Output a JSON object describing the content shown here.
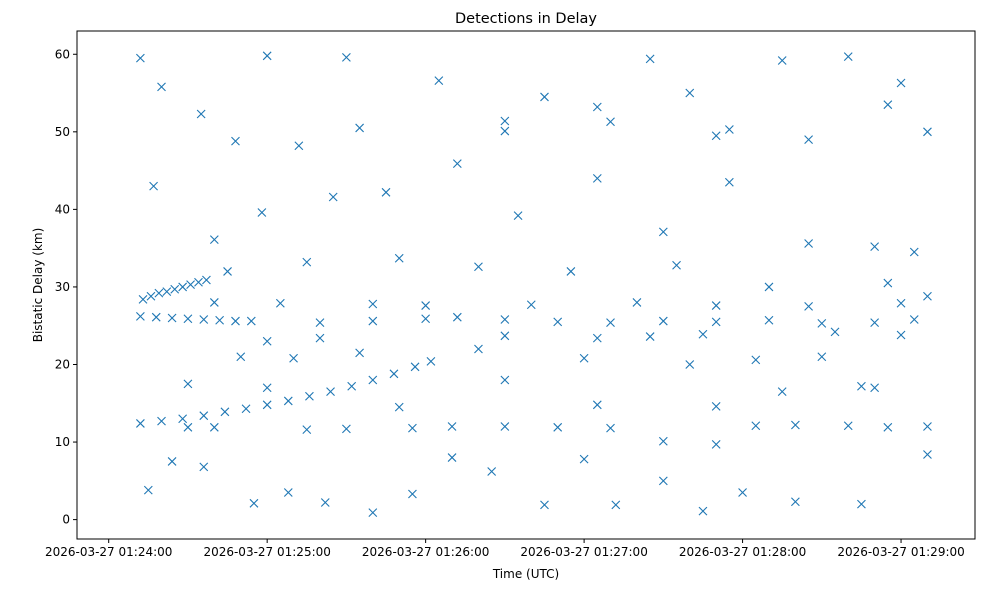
{
  "chart_data": {
    "type": "scatter",
    "title": "Detections in Delay",
    "xlabel": "Time (UTC)",
    "ylabel": "Bistatic Delay (km)",
    "marker": "x",
    "color": "#1f77b4",
    "grid": false,
    "legend": false,
    "x_unit": "time (UTC), 2026-03-27",
    "x_ticks": [
      "2026-03-27 01:24:00",
      "2026-03-27 01:25:00",
      "2026-03-27 01:26:00",
      "2026-03-27 01:27:00",
      "2026-03-27 01:28:00",
      "2026-03-27 01:29:00"
    ],
    "y_ticks": [
      0,
      10,
      20,
      30,
      40,
      50,
      60
    ],
    "xlim": [
      "2026-03-27 01:23:48",
      "2026-03-27 01:29:28"
    ],
    "ylim": [
      -2.5,
      63
    ],
    "series": [
      {
        "description_visible": "",
        "points": [
          [
            "01:24:13",
            28.4
          ],
          [
            "01:24:16",
            28.8
          ],
          [
            "01:24:19",
            29.2
          ],
          [
            "01:24:22",
            29.4
          ],
          [
            "01:24:25",
            29.7
          ],
          [
            "01:24:28",
            30.0
          ],
          [
            "01:24:31",
            30.3
          ],
          [
            "01:24:34",
            30.6
          ],
          [
            "01:24:37",
            30.9
          ],
          [
            "01:24:12",
            26.2
          ],
          [
            "01:24:18",
            26.1
          ],
          [
            "01:24:24",
            26.0
          ],
          [
            "01:24:30",
            25.9
          ],
          [
            "01:24:36",
            25.8
          ],
          [
            "01:24:42",
            25.7
          ],
          [
            "01:24:48",
            25.6
          ],
          [
            "01:24:54",
            25.6
          ],
          [
            "01:25:20",
            25.4
          ],
          [
            "01:25:40",
            25.6
          ],
          [
            "01:26:00",
            25.9
          ],
          [
            "01:26:12",
            26.1
          ],
          [
            "01:26:30",
            25.8
          ],
          [
            "01:26:50",
            25.5
          ],
          [
            "01:27:10",
            25.4
          ],
          [
            "01:27:30",
            25.6
          ],
          [
            "01:27:50",
            25.5
          ],
          [
            "01:28:10",
            25.7
          ],
          [
            "01:28:30",
            25.3
          ],
          [
            "01:28:50",
            25.4
          ],
          [
            "01:29:05",
            25.8
          ],
          [
            "01:24:12",
            12.4
          ],
          [
            "01:24:20",
            12.7
          ],
          [
            "01:24:28",
            13.0
          ],
          [
            "01:24:36",
            13.4
          ],
          [
            "01:24:44",
            13.9
          ],
          [
            "01:24:52",
            14.3
          ],
          [
            "01:25:00",
            14.8
          ],
          [
            "01:25:08",
            15.3
          ],
          [
            "01:25:16",
            15.9
          ],
          [
            "01:25:24",
            16.5
          ],
          [
            "01:25:32",
            17.2
          ],
          [
            "01:25:40",
            18.0
          ],
          [
            "01:25:48",
            18.8
          ],
          [
            "01:25:56",
            19.7
          ],
          [
            "01:26:02",
            20.4
          ],
          [
            "01:24:30",
            11.9
          ],
          [
            "01:24:40",
            11.9
          ],
          [
            "01:25:15",
            11.6
          ],
          [
            "01:25:30",
            11.7
          ],
          [
            "01:25:55",
            11.8
          ],
          [
            "01:26:10",
            12.0
          ],
          [
            "01:26:30",
            12.0
          ],
          [
            "01:26:50",
            11.9
          ],
          [
            "01:27:10",
            11.8
          ],
          [
            "01:27:30",
            10.1
          ],
          [
            "01:27:50",
            9.7
          ],
          [
            "01:28:05",
            12.1
          ],
          [
            "01:28:20",
            12.2
          ],
          [
            "01:28:40",
            12.1
          ],
          [
            "01:28:55",
            11.9
          ],
          [
            "01:29:10",
            12.0
          ],
          [
            "01:25:00",
            23.0
          ],
          [
            "01:25:20",
            23.4
          ],
          [
            "01:26:30",
            23.7
          ],
          [
            "01:27:05",
            23.4
          ],
          [
            "01:27:25",
            23.6
          ],
          [
            "01:27:45",
            23.9
          ],
          [
            "01:28:35",
            24.2
          ],
          [
            "01:29:00",
            23.8
          ],
          [
            "01:24:12",
            59.5
          ],
          [
            "01:24:20",
            55.8
          ],
          [
            "01:24:35",
            52.3
          ],
          [
            "01:25:00",
            59.8
          ],
          [
            "01:25:30",
            59.6
          ],
          [
            "01:26:05",
            56.6
          ],
          [
            "01:26:30",
            51.4
          ],
          [
            "01:26:45",
            54.5
          ],
          [
            "01:27:05",
            53.2
          ],
          [
            "01:27:25",
            59.4
          ],
          [
            "01:27:40",
            55.0
          ],
          [
            "01:27:55",
            50.3
          ],
          [
            "01:28:15",
            59.2
          ],
          [
            "01:28:40",
            59.7
          ],
          [
            "01:29:00",
            56.3
          ],
          [
            "01:29:10",
            50.0
          ],
          [
            "01:24:17",
            43.0
          ],
          [
            "01:24:40",
            36.1
          ],
          [
            "01:24:58",
            39.6
          ],
          [
            "01:25:25",
            41.6
          ],
          [
            "01:25:45",
            42.2
          ],
          [
            "01:26:12",
            45.9
          ],
          [
            "01:26:35",
            39.2
          ],
          [
            "01:27:05",
            44.0
          ],
          [
            "01:27:30",
            37.1
          ],
          [
            "01:27:55",
            43.5
          ],
          [
            "01:28:25",
            35.6
          ],
          [
            "01:28:50",
            35.2
          ],
          [
            "01:29:05",
            34.5
          ],
          [
            "01:24:15",
            3.8
          ],
          [
            "01:24:24",
            7.5
          ],
          [
            "01:24:36",
            6.8
          ],
          [
            "01:24:55",
            2.1
          ],
          [
            "01:25:08",
            3.5
          ],
          [
            "01:25:22",
            2.2
          ],
          [
            "01:25:40",
            0.9
          ],
          [
            "01:25:55",
            3.3
          ],
          [
            "01:26:10",
            8.0
          ],
          [
            "01:26:25",
            6.2
          ],
          [
            "01:26:45",
            1.9
          ],
          [
            "01:27:00",
            7.8
          ],
          [
            "01:27:12",
            1.9
          ],
          [
            "01:27:30",
            5.0
          ],
          [
            "01:27:45",
            1.1
          ],
          [
            "01:28:00",
            3.5
          ],
          [
            "01:28:20",
            2.3
          ],
          [
            "01:28:45",
            2.0
          ],
          [
            "01:29:10",
            8.4
          ],
          [
            "01:24:50",
            21.0
          ],
          [
            "01:25:10",
            20.8
          ],
          [
            "01:25:35",
            21.5
          ],
          [
            "01:26:20",
            22.0
          ],
          [
            "01:27:00",
            20.8
          ],
          [
            "01:27:40",
            20.0
          ],
          [
            "01:28:05",
            20.6
          ],
          [
            "01:28:30",
            21.0
          ],
          [
            "01:28:50",
            17.0
          ],
          [
            "01:24:45",
            32.0
          ],
          [
            "01:25:15",
            33.2
          ],
          [
            "01:25:50",
            33.7
          ],
          [
            "01:26:20",
            32.6
          ],
          [
            "01:26:55",
            32.0
          ],
          [
            "01:27:35",
            32.8
          ],
          [
            "01:28:10",
            30.0
          ],
          [
            "01:28:55",
            30.5
          ],
          [
            "01:29:10",
            28.8
          ],
          [
            "01:24:40",
            28.0
          ],
          [
            "01:25:05",
            27.9
          ],
          [
            "01:25:40",
            27.8
          ],
          [
            "01:26:00",
            27.6
          ],
          [
            "01:26:40",
            27.7
          ],
          [
            "01:27:20",
            28.0
          ],
          [
            "01:27:50",
            27.6
          ],
          [
            "01:28:25",
            27.5
          ],
          [
            "01:29:00",
            27.9
          ],
          [
            "01:24:30",
            17.5
          ],
          [
            "01:25:00",
            17.0
          ],
          [
            "01:25:50",
            14.5
          ],
          [
            "01:26:30",
            18.0
          ],
          [
            "01:27:05",
            14.8
          ],
          [
            "01:27:50",
            14.6
          ],
          [
            "01:28:15",
            16.5
          ],
          [
            "01:28:45",
            17.2
          ],
          [
            "01:24:48",
            48.8
          ],
          [
            "01:25:12",
            48.2
          ],
          [
            "01:25:35",
            50.5
          ],
          [
            "01:26:30",
            50.1
          ],
          [
            "01:27:10",
            51.3
          ],
          [
            "01:27:50",
            49.5
          ],
          [
            "01:28:25",
            49.0
          ],
          [
            "01:28:55",
            53.5
          ]
        ]
      }
    ]
  }
}
